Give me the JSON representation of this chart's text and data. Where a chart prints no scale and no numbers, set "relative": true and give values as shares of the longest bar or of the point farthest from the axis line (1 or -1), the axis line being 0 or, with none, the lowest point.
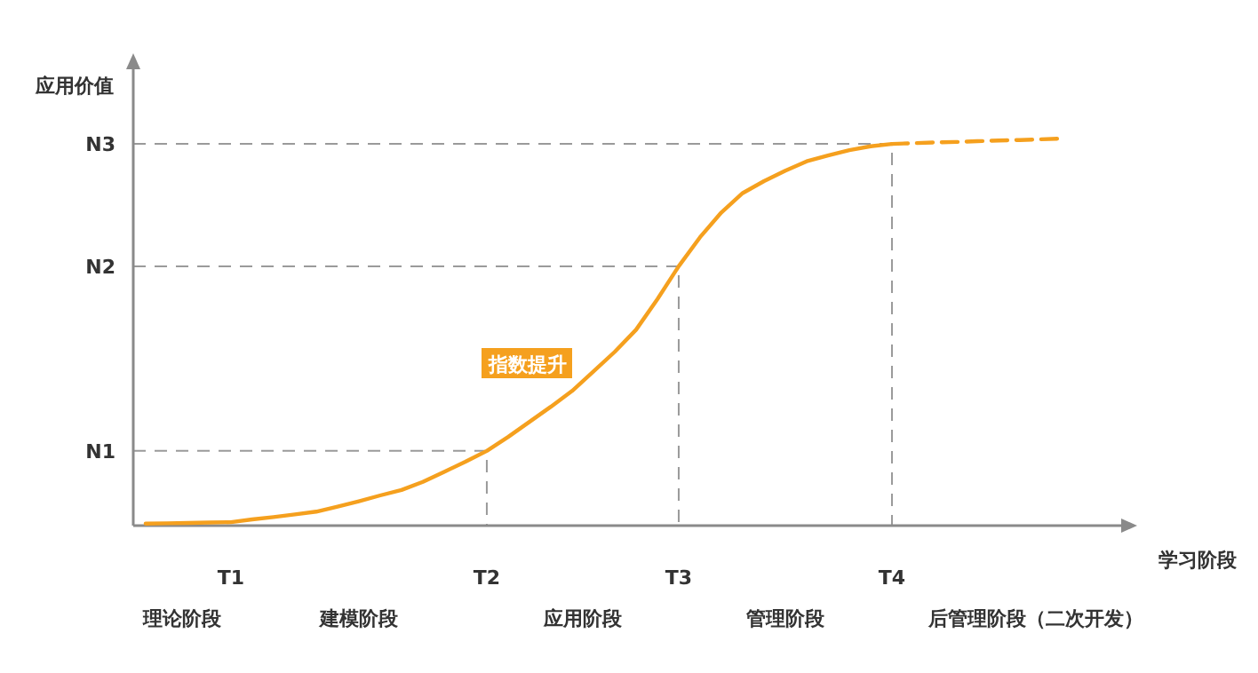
{
  "chart_data": {
    "type": "line",
    "relative": true,
    "xlabel": "学习阶段",
    "ylabel": "应用价值",
    "categories": [
      null,
      null,
      null,
      null,
      "T1",
      null,
      null,
      null,
      null,
      null,
      null,
      null,
      null,
      null,
      null,
      null,
      "T2",
      null,
      null,
      null,
      null,
      null,
      null,
      null,
      null,
      "T3",
      null,
      null,
      null,
      null,
      null,
      null,
      null,
      null,
      null,
      "T4",
      null,
      null,
      null,
      null,
      null,
      null,
      null,
      null
    ],
    "series": [
      {
        "color": "#f5a01e",
        "line_style": "solid",
        "values": [
          0.005,
          0.006,
          0.007,
          0.008,
          0.009,
          0.016,
          0.022,
          0.029,
          0.036,
          0.049,
          0.063,
          0.078,
          0.092,
          0.113,
          0.139,
          0.165,
          0.193,
          0.229,
          0.268,
          0.307,
          0.348,
          0.398,
          0.449,
          0.506,
          0.585,
          0.67,
          0.745,
          0.809,
          0.859,
          0.89,
          0.917,
          0.941,
          0.956,
          0.97,
          0.98,
          0.986,
          null,
          null,
          null,
          null,
          null,
          null,
          null,
          null
        ]
      },
      {
        "color": "#f5a01e",
        "line_style": "dashed",
        "values": [
          null,
          null,
          null,
          null,
          null,
          null,
          null,
          null,
          null,
          null,
          null,
          null,
          null,
          null,
          null,
          null,
          null,
          null,
          null,
          null,
          null,
          null,
          null,
          null,
          null,
          null,
          null,
          null,
          null,
          null,
          null,
          null,
          null,
          null,
          null,
          0.986,
          0.988,
          0.99,
          0.991,
          0.993,
          0.995,
          0.996,
          0.998,
          1.0
        ]
      }
    ],
    "annotations": [
      "理论阶段",
      "建模阶段",
      "应用阶段",
      "管理阶段",
      "后管理阶段（二次开发）",
      "指数提升"
    ],
    "ref_lines": [
      {
        "axis": "y",
        "value": 0.193,
        "label": "N1",
        "color": "#9a9a9a",
        "line_style": "dashed"
      },
      {
        "axis": "y",
        "value": 0.67,
        "label": "N2",
        "color": "#9a9a9a",
        "line_style": "dashed"
      },
      {
        "axis": "y",
        "value": 0.986,
        "label": "N3",
        "color": "#9a9a9a",
        "line_style": "dashed"
      }
    ],
    "marker": "none",
    "legend": false,
    "grid": false
  }
}
